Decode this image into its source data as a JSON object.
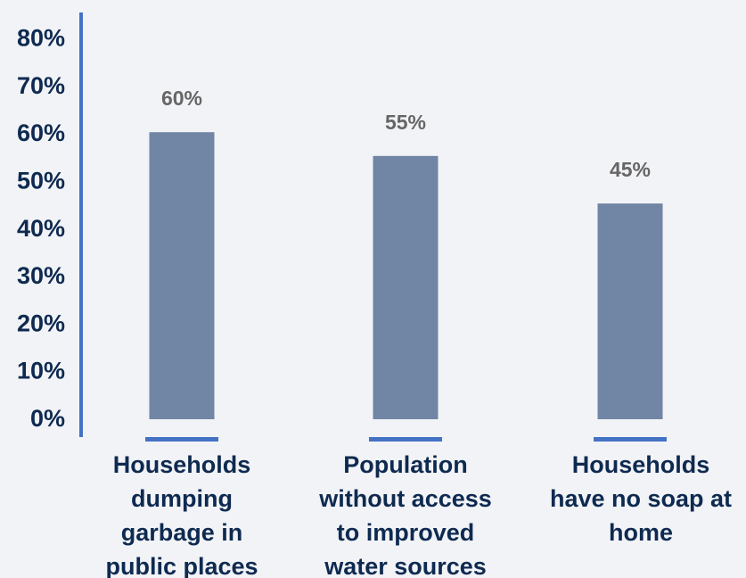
{
  "chart_data": {
    "type": "bar",
    "title": "",
    "xlabel": "",
    "ylabel": "",
    "ylim": [
      0,
      80
    ],
    "y_ticks": [
      "0%",
      "10%",
      "20%",
      "30%",
      "40%",
      "50%",
      "60%",
      "70%",
      "80%"
    ],
    "y_tick_values": [
      0,
      10,
      20,
      30,
      40,
      50,
      60,
      70,
      80
    ],
    "grid": false,
    "categories": [
      "Households dumping garbage in public places",
      "Population without access to improved water sources",
      "Households have no soap at home"
    ],
    "category_lines": [
      [
        "Households",
        "dumping",
        "garbage in",
        "public places"
      ],
      [
        "Population",
        "without access",
        "to improved",
        "water sources"
      ],
      [
        "Households",
        "have no soap at",
        "home"
      ]
    ],
    "values": [
      60,
      55,
      45
    ],
    "data_labels": [
      "60%",
      "55%",
      "45%"
    ]
  },
  "colors": {
    "background": "#f2f3f7",
    "bar": "#7185a5",
    "axis": "#4472c4",
    "tick_text": "#0e2a50",
    "data_label_text": "#666666"
  }
}
